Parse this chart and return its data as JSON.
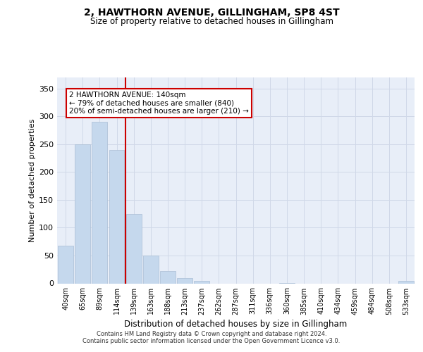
{
  "title": "2, HAWTHORN AVENUE, GILLINGHAM, SP8 4ST",
  "subtitle": "Size of property relative to detached houses in Gillingham",
  "xlabel": "Distribution of detached houses by size in Gillingham",
  "ylabel": "Number of detached properties",
  "categories": [
    "40sqm",
    "65sqm",
    "89sqm",
    "114sqm",
    "139sqm",
    "163sqm",
    "188sqm",
    "213sqm",
    "237sqm",
    "262sqm",
    "287sqm",
    "311sqm",
    "336sqm",
    "360sqm",
    "385sqm",
    "410sqm",
    "434sqm",
    "459sqm",
    "484sqm",
    "508sqm",
    "533sqm"
  ],
  "values": [
    68,
    250,
    290,
    240,
    125,
    50,
    22,
    10,
    4,
    0,
    0,
    0,
    0,
    1,
    0,
    0,
    0,
    0,
    0,
    0,
    4
  ],
  "bar_color": "#c5d8ed",
  "bar_edge_color": "#aabdd4",
  "property_line_color": "#cc0000",
  "annotation_line1": "2 HAWTHORN AVENUE: 140sqm",
  "annotation_line2": "← 79% of detached houses are smaller (840)",
  "annotation_line3": "20% of semi-detached houses are larger (210) →",
  "annotation_box_facecolor": "#ffffff",
  "annotation_box_edgecolor": "#cc0000",
  "ylim_max": 370,
  "yticks": [
    0,
    50,
    100,
    150,
    200,
    250,
    300,
    350
  ],
  "grid_color": "#d0d8e8",
  "background_color": "#e8eef8",
  "footer_line1": "Contains HM Land Registry data © Crown copyright and database right 2024.",
  "footer_line2": "Contains public sector information licensed under the Open Government Licence v3.0."
}
